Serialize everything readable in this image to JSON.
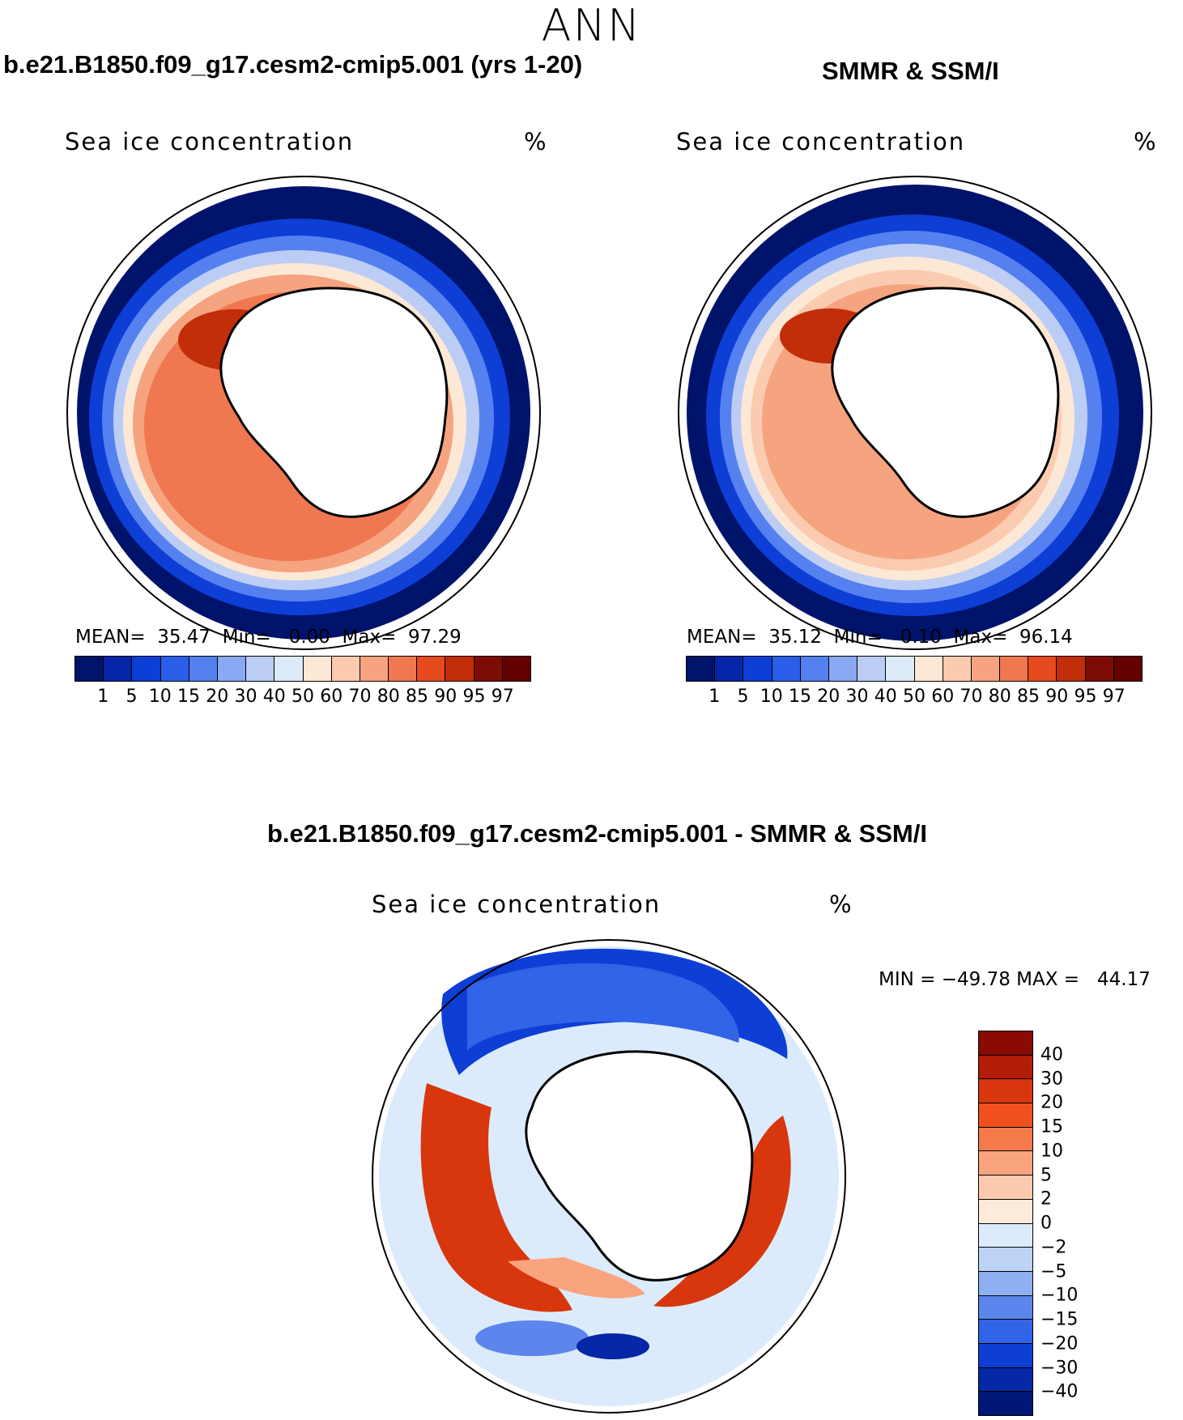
{
  "title": "ANN",
  "panels": [
    {
      "title": "b.e21.B1850.f09_g17.cesm2-cmip5.001 (yrs 1-20)",
      "field_label": "Sea ice concentration",
      "units": "%",
      "stats": "MEAN=  35.47  Min=   0.00  Max=  97.29"
    },
    {
      "title": "SMMR & SSM/I",
      "field_label": "Sea ice concentration",
      "units": "%",
      "stats": "MEAN=  35.12  Min=   0.10  Max=  96.14"
    },
    {
      "title": "b.e21.B1850.f09_g17.cesm2-cmip5.001 - SMMR & SSM/I",
      "field_label": "Sea ice concentration",
      "units": "%",
      "stats": "MIN = −49.78 MAX =   44.17"
    }
  ],
  "colorbar_abs": {
    "levels": [
      "1",
      "5",
      "10",
      "15",
      "20",
      "30",
      "40",
      "50",
      "60",
      "70",
      "80",
      "85",
      "90",
      "95",
      "97"
    ],
    "colors": [
      "#00136b",
      "#0625a8",
      "#0d3ed6",
      "#2a5ee8",
      "#5580ef",
      "#8aa9f3",
      "#bccdf5",
      "#ddeaf8",
      "#fde8d6",
      "#fbcbb0",
      "#f6a380",
      "#f07850",
      "#e84a20",
      "#c22d0a",
      "#7d0c05",
      "#650000"
    ]
  },
  "colorbar_diff": {
    "levels": [
      "40",
      "30",
      "20",
      "15",
      "10",
      "5",
      "2",
      "0",
      "−2",
      "−5",
      "−10",
      "−15",
      "−20",
      "−30",
      "−40"
    ],
    "colors": [
      "#8a0a06",
      "#b11d08",
      "#d8360d",
      "#f0501e",
      "#f57a4a",
      "#f9a47e",
      "#fbc9ae",
      "#fdebd9",
      "#dcebfb",
      "#bcd3f6",
      "#8db0f2",
      "#5c86ec",
      "#3164e6",
      "#0e3fd4",
      "#0628a6",
      "#001776"
    ]
  },
  "chart_data": [
    {
      "type": "heatmap",
      "title": "b.e21.B1850.f09_g17.cesm2-cmip5.001 (yrs 1-20)",
      "variable": "Sea ice concentration",
      "units": "%",
      "region": "Antarctic (polar stereographic)",
      "mean": 35.47,
      "min": 0.0,
      "max": 97.29
    },
    {
      "type": "heatmap",
      "title": "SMMR & SSM/I",
      "variable": "Sea ice concentration",
      "units": "%",
      "region": "Antarctic (polar stereographic)",
      "mean": 35.12,
      "min": 0.1,
      "max": 96.14
    },
    {
      "type": "heatmap",
      "title": "b.e21.B1850.f09_g17.cesm2-cmip5.001 - SMMR & SSM/I",
      "variable": "Sea ice concentration",
      "units": "%",
      "region": "Antarctic (polar stereographic)",
      "min": -49.78,
      "max": 44.17
    }
  ]
}
